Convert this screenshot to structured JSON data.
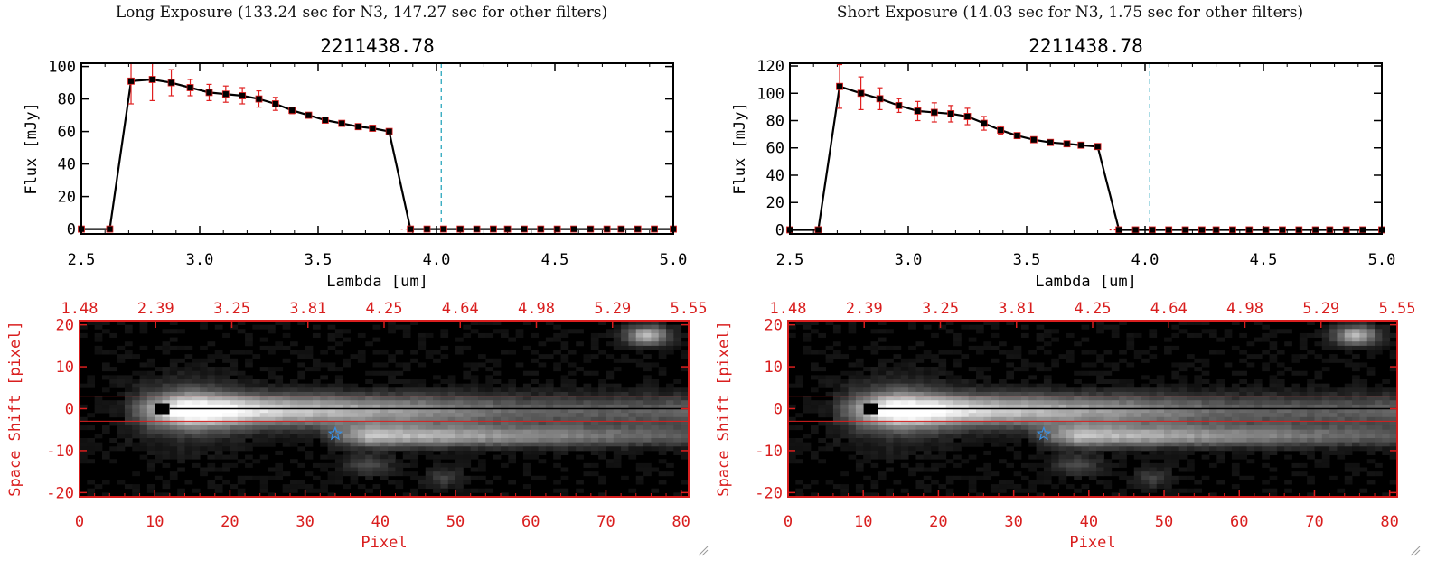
{
  "colors": {
    "axis": "#000000",
    "image_axis": "#d91e1e",
    "errorbar": "#e02020",
    "marker": "#000000",
    "vline": "#1aa0b8",
    "star": "#3a8fe0"
  },
  "panels": [
    {
      "title": "Long Exposure (133.24 sec for N3, 147.27 sec for other filters)"
    },
    {
      "title": "Short Exposure (14.03 sec for N3, 1.75 sec for other filters)"
    }
  ],
  "chart_data": [
    {
      "type": "line",
      "title": "2211438.78",
      "xlabel": "Lambda [um]",
      "ylabel": "Flux [mJy]",
      "xlim": [
        2.5,
        5.0
      ],
      "ylim": [
        -3,
        102
      ],
      "xticks": [
        "2.5",
        "3.0",
        "3.5",
        "4.0",
        "4.5",
        "5.0"
      ],
      "yticks": [
        "0",
        "20",
        "40",
        "60",
        "80",
        "100"
      ],
      "vline_x": 4.02,
      "series": [
        {
          "x": [
            2.5,
            2.62,
            2.71,
            2.8,
            2.88,
            2.96,
            3.04,
            3.11,
            3.18,
            3.25,
            3.32,
            3.39,
            3.46,
            3.53,
            3.6,
            3.67,
            3.73,
            3.8,
            3.89,
            3.96,
            4.03,
            4.1,
            4.17,
            4.24,
            4.3,
            4.37,
            4.44,
            4.51,
            4.58,
            4.65,
            4.72,
            4.78,
            4.85,
            4.92,
            5.0
          ],
          "y": [
            0,
            0,
            91,
            92,
            90,
            87,
            84,
            83,
            82,
            80,
            77,
            73,
            70,
            67,
            65,
            63,
            62,
            60,
            0,
            0,
            0,
            0,
            0,
            0,
            0,
            0,
            0,
            0,
            0,
            0,
            0,
            0,
            0,
            0,
            0
          ],
          "err": [
            0,
            0,
            14,
            13,
            8,
            5,
            5,
            5,
            5,
            5,
            4,
            2,
            1,
            1,
            1,
            1,
            1,
            1,
            0,
            0,
            0,
            0,
            0,
            0,
            0,
            0,
            0,
            0,
            0,
            0,
            0,
            0,
            0,
            0,
            0
          ]
        }
      ]
    },
    {
      "type": "line",
      "title": "2211438.78",
      "xlabel": "Lambda [um]",
      "ylabel": "Flux [mJy]",
      "xlim": [
        2.5,
        5.0
      ],
      "ylim": [
        -3,
        122
      ],
      "xticks": [
        "2.5",
        "3.0",
        "3.5",
        "4.0",
        "4.5",
        "5.0"
      ],
      "yticks": [
        "0",
        "20",
        "40",
        "60",
        "80",
        "100",
        "120"
      ],
      "vline_x": 4.02,
      "series": [
        {
          "x": [
            2.5,
            2.62,
            2.71,
            2.8,
            2.88,
            2.96,
            3.04,
            3.11,
            3.18,
            3.25,
            3.32,
            3.39,
            3.46,
            3.53,
            3.6,
            3.67,
            3.73,
            3.8,
            3.89,
            3.96,
            4.03,
            4.1,
            4.17,
            4.24,
            4.3,
            4.37,
            4.44,
            4.51,
            4.58,
            4.65,
            4.72,
            4.78,
            4.85,
            4.92,
            5.0
          ],
          "y": [
            0,
            0,
            105,
            100,
            96,
            91,
            87,
            86,
            85,
            83,
            78,
            73,
            69,
            66,
            64,
            63,
            62,
            61,
            0,
            0,
            0,
            0,
            0,
            0,
            0,
            0,
            0,
            0,
            0,
            0,
            0,
            0,
            0,
            0,
            0
          ],
          "err": [
            0,
            0,
            16,
            12,
            8,
            5,
            7,
            7,
            6,
            6,
            5,
            3,
            2,
            1,
            1,
            1,
            1,
            1,
            0,
            0,
            0,
            0,
            0,
            0,
            0,
            0,
            0,
            0,
            0,
            0,
            0,
            0,
            0,
            0,
            0
          ]
        }
      ]
    },
    {
      "type": "heatmap",
      "xlabel": "Pixel",
      "ylabel": "Space Shift [pixel]",
      "xlim": [
        0,
        81
      ],
      "ylim": [
        -21,
        21
      ],
      "xticks": [
        "0",
        "10",
        "20",
        "30",
        "40",
        "50",
        "60",
        "70",
        "80"
      ],
      "yticks": [
        "-20",
        "-10",
        "0",
        "10",
        "20"
      ],
      "top_ticks": [
        "1.48",
        "2.39",
        "3.25",
        "3.81",
        "4.25",
        "4.64",
        "4.98",
        "5.29",
        "5.55"
      ],
      "band": [
        -3,
        3
      ],
      "source_pixel": [
        11,
        0
      ],
      "star_pixel": [
        34,
        -6
      ]
    },
    {
      "type": "heatmap",
      "xlabel": "Pixel",
      "ylabel": "Space Shift [pixel]",
      "xlim": [
        0,
        81
      ],
      "ylim": [
        -21,
        21
      ],
      "xticks": [
        "0",
        "10",
        "20",
        "30",
        "40",
        "50",
        "60",
        "70",
        "80"
      ],
      "yticks": [
        "-20",
        "-10",
        "0",
        "10",
        "20"
      ],
      "top_ticks": [
        "1.48",
        "2.39",
        "3.25",
        "3.81",
        "4.25",
        "4.64",
        "4.98",
        "5.29",
        "5.55"
      ],
      "band": [
        -3,
        3
      ],
      "source_pixel": [
        11,
        0
      ],
      "star_pixel": [
        34,
        -6
      ]
    }
  ]
}
